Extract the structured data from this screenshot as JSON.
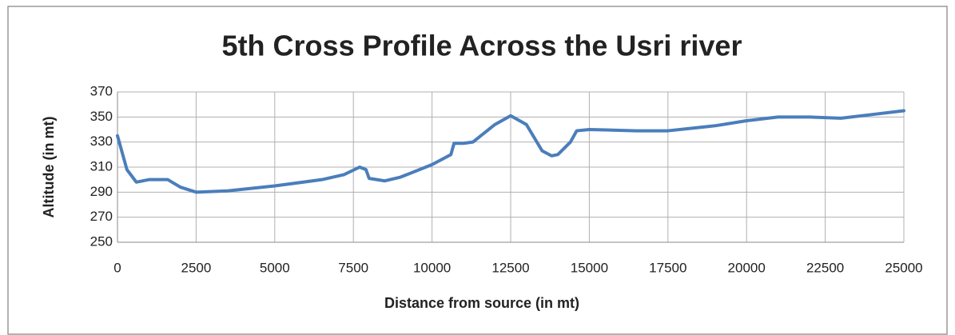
{
  "chart_data": {
    "type": "line",
    "title": "5th Cross Profile Across the Usri river",
    "x_label": "Distance from source (in mt)",
    "y_label": "Altitude (in mt)",
    "x": [
      0,
      300,
      600,
      1000,
      1600,
      2000,
      2500,
      3500,
      5000,
      6500,
      7200,
      7700,
      7900,
      8000,
      8500,
      9000,
      10000,
      10600,
      10700,
      11000,
      11300,
      12000,
      12500,
      13000,
      13500,
      13800,
      14000,
      14400,
      14600,
      15000,
      16500,
      17500,
      19000,
      20000,
      21000,
      22000,
      23000,
      24000,
      25000
    ],
    "series": [
      {
        "name": "Altitude",
        "color": "#4a7ebb",
        "values": [
          335,
          308,
          298,
          300,
          300,
          294,
          290,
          291,
          295,
          300,
          304,
          310,
          308,
          301,
          299,
          302,
          312,
          320,
          329,
          329,
          330,
          344,
          351,
          344,
          323,
          319,
          320,
          330,
          339,
          340,
          339,
          339,
          343,
          347,
          350,
          350,
          349,
          352,
          355
        ]
      }
    ],
    "xlim": [
      0,
      25000
    ],
    "xticks": [
      0,
      2500,
      5000,
      7500,
      10000,
      12500,
      15000,
      17500,
      20000,
      22500,
      25000
    ],
    "ylim": [
      250,
      370
    ],
    "yticks": [
      250,
      270,
      290,
      310,
      330,
      350,
      370
    ],
    "grid": true
  }
}
